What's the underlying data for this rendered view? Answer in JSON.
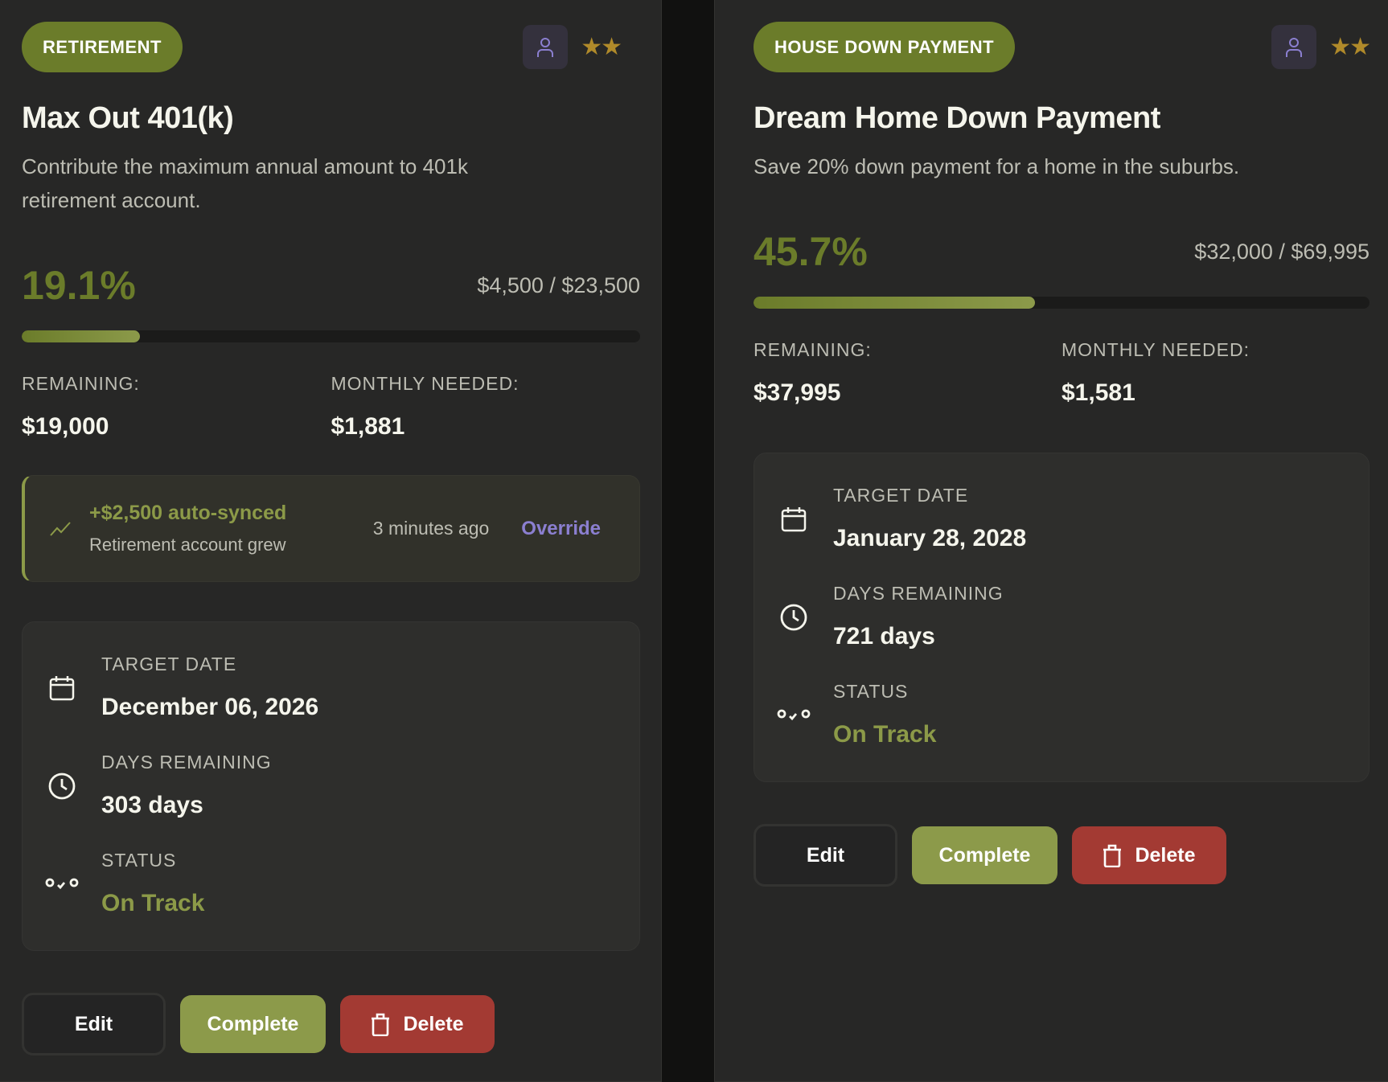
{
  "colors": {
    "accent": "#6b7c2a",
    "status_green": "#8c9a48",
    "link": "#8b7fd0",
    "danger": "#a33a33",
    "star": "#b08a2a"
  },
  "goals": [
    {
      "category": "RETIREMENT",
      "priority_stars": 2,
      "stars": "★★",
      "title": "Max Out 401(k)",
      "description": "Contribute the maximum annual amount to 401k retirement account.",
      "percent_label": "19.1%",
      "progress_percent": 19.1,
      "amount": "$4,500 / $23,500",
      "remaining_label": "REMAINING:",
      "remaining": "$19,000",
      "monthly_label": "MONTHLY NEEDED:",
      "monthly": "$1,881",
      "sync": {
        "title": "+$2,500 auto-synced",
        "subtitle": "Retirement account grew",
        "time": "3 minutes ago",
        "override_label": "Override"
      },
      "target_date_label": "TARGET DATE",
      "target_date": "December 06, 2026",
      "days_label": "DAYS REMAINING",
      "days": "303 days",
      "status_label": "STATUS",
      "status": "On Track",
      "edit_label": "Edit",
      "complete_label": "Complete",
      "delete_label": "Delete"
    },
    {
      "category": "HOUSE DOWN PAYMENT",
      "priority_stars": 2,
      "stars": "★★",
      "title": "Dream Home Down Payment",
      "description": "Save 20% down payment for a home in the suburbs.",
      "percent_label": "45.7%",
      "progress_percent": 45.7,
      "amount": "$32,000 / $69,995",
      "remaining_label": "REMAINING:",
      "remaining": "$37,995",
      "monthly_label": "MONTHLY NEEDED:",
      "monthly": "$1,581",
      "target_date_label": "TARGET DATE",
      "target_date": "January 28, 2028",
      "days_label": "DAYS REMAINING",
      "days": "721 days",
      "status_label": "STATUS",
      "status": "On Track",
      "edit_label": "Edit",
      "complete_label": "Complete",
      "delete_label": "Delete"
    }
  ]
}
